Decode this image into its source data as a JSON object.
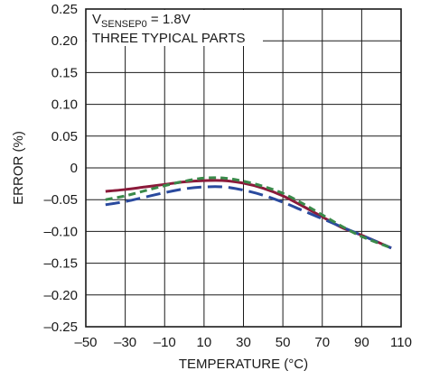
{
  "chart_data": {
    "type": "line",
    "title": "",
    "xlabel": "TEMPERATURE (°C)",
    "ylabel": "ERROR (%)",
    "xlim": [
      -50,
      110
    ],
    "ylim": [
      -0.25,
      0.25
    ],
    "grid": true,
    "x_ticks": [
      -50,
      -30,
      -10,
      10,
      30,
      50,
      70,
      90,
      110
    ],
    "x_tick_labels": [
      "–50",
      "–30",
      "–10",
      "10",
      "30",
      "50",
      "70",
      "90",
      "110"
    ],
    "y_ticks": [
      0.25,
      0.2,
      0.15,
      0.1,
      0.05,
      0,
      -0.05,
      -0.1,
      -0.15,
      -0.2,
      -0.25
    ],
    "y_tick_labels": [
      "0.25",
      "0.20",
      "0.15",
      "0.10",
      "0.05",
      "0",
      "–0.05",
      "–0.10",
      "–0.15",
      "–0.20",
      "–0.25"
    ],
    "annotation": {
      "line1_main": "V",
      "line1_sub": "SENSEP0",
      "line1_rest": " = 1.8V",
      "line2": "THREE TYPICAL PARTS"
    },
    "series": [
      {
        "color": "#8b1a3a",
        "dash": "solid",
        "x": [
          -40,
          -30,
          -20,
          -10,
          0,
          10,
          20,
          30,
          40,
          50,
          60,
          70,
          80,
          90,
          105
        ],
        "y": [
          -0.037,
          -0.034,
          -0.03,
          -0.026,
          -0.022,
          -0.02,
          -0.02,
          -0.024,
          -0.032,
          -0.044,
          -0.06,
          -0.077,
          -0.094,
          -0.106,
          -0.126
        ]
      },
      {
        "color": "#2a4a9e",
        "dash": "long-dash",
        "x": [
          -40,
          -30,
          -20,
          -10,
          0,
          10,
          20,
          30,
          40,
          50,
          60,
          70,
          80,
          90,
          105
        ],
        "y": [
          -0.058,
          -0.053,
          -0.046,
          -0.039,
          -0.033,
          -0.03,
          -0.03,
          -0.035,
          -0.043,
          -0.054,
          -0.067,
          -0.08,
          -0.093,
          -0.106,
          -0.126
        ]
      },
      {
        "color": "#3a8a4a",
        "dash": "short-dash",
        "x": [
          -40,
          -30,
          -20,
          -10,
          0,
          10,
          20,
          30,
          40,
          50,
          60,
          70,
          80,
          90,
          105
        ],
        "y": [
          -0.05,
          -0.044,
          -0.036,
          -0.028,
          -0.021,
          -0.016,
          -0.016,
          -0.021,
          -0.029,
          -0.04,
          -0.056,
          -0.074,
          -0.092,
          -0.108,
          -0.126
        ]
      }
    ]
  }
}
